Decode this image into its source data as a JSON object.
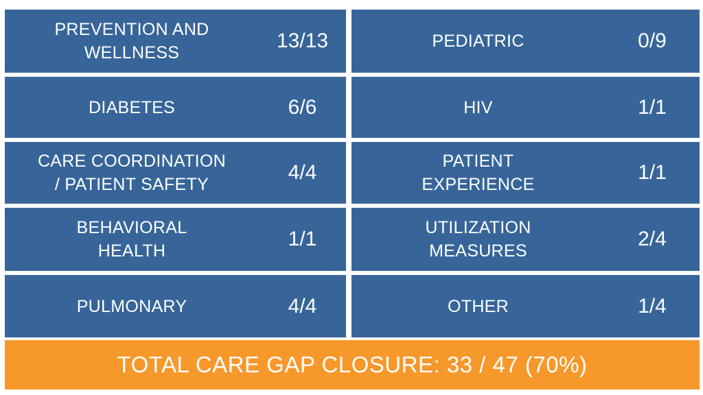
{
  "rows": [
    {
      "left": {
        "label": "PREVENTION AND\nWELLNESS",
        "value": "13/13"
      },
      "right": {
        "label": "PEDIATRIC",
        "value": "0/9"
      }
    },
    {
      "left": {
        "label": "DIABETES",
        "value": "6/6"
      },
      "right": {
        "label": "HIV",
        "value": "1/1"
      }
    },
    {
      "left": {
        "label": "CARE COORDINATION\n/ PATIENT SAFETY",
        "value": "4/4"
      },
      "right": {
        "label": "PATIENT\nEXPERIENCE",
        "value": "1/1"
      }
    },
    {
      "left": {
        "label": "BEHAVIORAL\nHEALTH",
        "value": "1/1"
      },
      "right": {
        "label": "UTILIZATION\nMEASURES",
        "value": "2/4"
      }
    },
    {
      "left": {
        "label": "PULMONARY",
        "value": "4/4"
      },
      "right": {
        "label": "OTHER",
        "value": "1/4"
      }
    }
  ],
  "total": {
    "label": "TOTAL CARE GAP CLOSURE: 33 / 47 (70%)"
  },
  "colors": {
    "cell_background": "#376599",
    "total_background": "#f7982a",
    "text": "#ffffff"
  }
}
